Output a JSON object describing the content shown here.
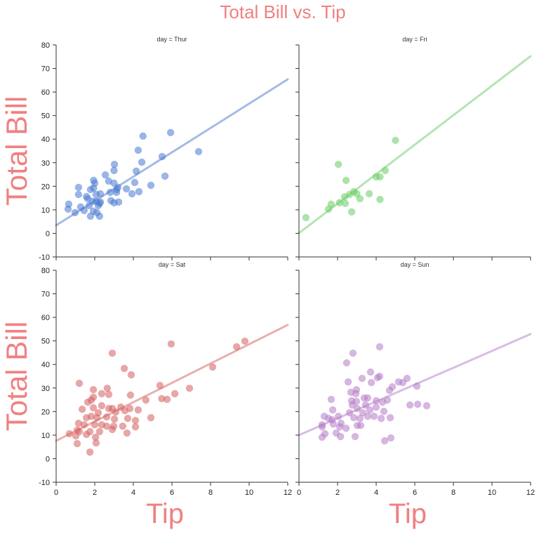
{
  "chart_data": {
    "type": "scatter",
    "title": "Total Bill vs. Tip",
    "title_color": "#f08080",
    "xlabel": "Tip",
    "ylabel": "Total Bill",
    "xlim": [
      0,
      12
    ],
    "ylim": [
      -10,
      80
    ],
    "xticks": [
      "0",
      "2",
      "4",
      "6",
      "8",
      "10",
      "12"
    ],
    "yticks": [
      "-10",
      "0",
      "10",
      "20",
      "30",
      "40",
      "50",
      "60",
      "70",
      "80"
    ],
    "grid": false,
    "panels": [
      {
        "title": "day = Thur",
        "color": "#4878cf",
        "fit": [
          [
            0,
            3.4
          ],
          [
            12,
            65.4
          ]
        ],
        "points": [
          [
            4.5,
            41.3
          ],
          [
            5.93,
            42.8
          ],
          [
            7.38,
            34.7
          ],
          [
            4.25,
            35.3
          ],
          [
            5.49,
            32.6
          ],
          [
            4.44,
            30.2
          ],
          [
            3.02,
            29.3
          ],
          [
            3.0,
            26.7
          ],
          [
            4.15,
            26.4
          ],
          [
            5.64,
            24.3
          ],
          [
            2.55,
            24.8
          ],
          [
            1.94,
            22.5
          ],
          [
            2.0,
            21.3
          ],
          [
            2.72,
            22.2
          ],
          [
            3.0,
            21.3
          ],
          [
            4.07,
            21.6
          ],
          [
            1.16,
            19.5
          ],
          [
            1.16,
            16.5
          ],
          [
            1.78,
            18.6
          ],
          [
            1.94,
            19.2
          ],
          [
            3.2,
            19.5
          ],
          [
            3.13,
            18.6
          ],
          [
            3.64,
            18.9
          ],
          [
            4.91,
            20.4
          ],
          [
            2.8,
            17.4
          ],
          [
            3.13,
            17.4
          ],
          [
            2.29,
            16.8
          ],
          [
            2.07,
            16.5
          ],
          [
            3.93,
            16.8
          ],
          [
            4.29,
            17.7
          ],
          [
            1.57,
            15.6
          ],
          [
            1.64,
            14.7
          ],
          [
            1.89,
            13.6
          ],
          [
            2.07,
            13.6
          ],
          [
            2.29,
            13.3
          ],
          [
            2.25,
            12.7
          ],
          [
            2.84,
            13.9
          ],
          [
            3.24,
            13.3
          ],
          [
            3.0,
            13.0
          ],
          [
            0.65,
            12.4
          ],
          [
            0.62,
            10.3
          ],
          [
            1.27,
            11.2
          ],
          [
            1.45,
            9.7
          ],
          [
            0.98,
            8.8
          ],
          [
            1.93,
            9.4
          ],
          [
            2.11,
            8.8
          ],
          [
            1.78,
            7.3
          ],
          [
            2.25,
            7.3
          ],
          [
            1.71,
            11.8
          ],
          [
            2.18,
            11.8
          ]
        ]
      },
      {
        "title": "day = Fri",
        "color": "#6acc65",
        "fit": [
          [
            0,
            0.1
          ],
          [
            12,
            75.2
          ]
        ],
        "points": [
          [
            0.36,
            6.7
          ],
          [
            1.53,
            10.3
          ],
          [
            1.67,
            12.4
          ],
          [
            2.1,
            13.0
          ],
          [
            2.04,
            29.3
          ],
          [
            2.36,
            15.5
          ],
          [
            2.44,
            22.5
          ],
          [
            2.4,
            12.7
          ],
          [
            2.62,
            16.5
          ],
          [
            2.73,
            9.1
          ],
          [
            2.84,
            17.7
          ],
          [
            3.0,
            16.8
          ],
          [
            3.16,
            14.7
          ],
          [
            3.64,
            16.8
          ],
          [
            4.0,
            24.0
          ],
          [
            4.2,
            24.0
          ],
          [
            4.2,
            14.4
          ],
          [
            4.47,
            26.7
          ],
          [
            5.0,
            39.5
          ]
        ]
      },
      {
        "title": "day = Sat",
        "color": "#d65f5f",
        "fit": [
          [
            0,
            7.6
          ],
          [
            12,
            56.8
          ]
        ],
        "points": [
          [
            5.96,
            48.7
          ],
          [
            9.78,
            49.9
          ],
          [
            9.35,
            47.5
          ],
          [
            2.91,
            44.8
          ],
          [
            3.53,
            38.3
          ],
          [
            3.89,
            35.6
          ],
          [
            8.11,
            38.9
          ],
          [
            1.2,
            32.0
          ],
          [
            5.38,
            31.1
          ],
          [
            6.91,
            29.9
          ],
          [
            6.15,
            27.6
          ],
          [
            2.65,
            29.9
          ],
          [
            1.93,
            29.3
          ],
          [
            2.36,
            27.6
          ],
          [
            2.73,
            27.3
          ],
          [
            1.93,
            26.1
          ],
          [
            1.64,
            24.0
          ],
          [
            1.82,
            24.9
          ],
          [
            3.85,
            27.0
          ],
          [
            4.65,
            24.9
          ],
          [
            5.47,
            25.5
          ],
          [
            5.75,
            25.2
          ],
          [
            1.35,
            21.0
          ],
          [
            1.93,
            21.6
          ],
          [
            2.36,
            22.5
          ],
          [
            2.73,
            21.3
          ],
          [
            2.91,
            21.3
          ],
          [
            3.35,
            21.9
          ],
          [
            3.56,
            20.4
          ],
          [
            3.82,
            21.3
          ],
          [
            4.25,
            20.7
          ],
          [
            3.09,
            19.8
          ],
          [
            2.18,
            19.5
          ],
          [
            1.57,
            17.4
          ],
          [
            1.82,
            18.0
          ],
          [
            2.11,
            17.4
          ],
          [
            2.62,
            17.7
          ],
          [
            3.02,
            16.8
          ],
          [
            3.71,
            17.1
          ],
          [
            4.11,
            16.2
          ],
          [
            4.91,
            17.4
          ],
          [
            1.16,
            15.0
          ],
          [
            1.45,
            14.4
          ],
          [
            2.0,
            14.4
          ],
          [
            2.36,
            14.4
          ],
          [
            2.62,
            13.8
          ],
          [
            2.98,
            13.8
          ],
          [
            3.45,
            13.8
          ],
          [
            2.91,
            12.4
          ],
          [
            4.11,
            13.5
          ],
          [
            1.09,
            12.1
          ],
          [
            1.2,
            11.5
          ],
          [
            1.75,
            11.5
          ],
          [
            2.25,
            11.5
          ],
          [
            0.69,
            10.6
          ],
          [
            1.02,
            9.7
          ],
          [
            1.57,
            10.3
          ],
          [
            3.67,
            10.9
          ],
          [
            2.04,
            9.1
          ],
          [
            1.09,
            6.4
          ],
          [
            2.07,
            6.7
          ],
          [
            1.75,
            2.8
          ]
        ]
      },
      {
        "title": "day = Sun",
        "color": "#b47cc7",
        "fit": [
          [
            0,
            10.0
          ],
          [
            12,
            52.9
          ]
        ],
        "points": [
          [
            4.18,
            47.5
          ],
          [
            2.8,
            44.8
          ],
          [
            2.47,
            40.7
          ],
          [
            3.71,
            36.8
          ],
          [
            4.18,
            35.0
          ],
          [
            4.07,
            34.4
          ],
          [
            3.27,
            34.1
          ],
          [
            2.55,
            32.6
          ],
          [
            3.75,
            32.3
          ],
          [
            5.16,
            32.6
          ],
          [
            5.38,
            32.3
          ],
          [
            5.6,
            34.1
          ],
          [
            6.11,
            30.8
          ],
          [
            4.84,
            30.5
          ],
          [
            4.69,
            29.0
          ],
          [
            2.98,
            29.3
          ],
          [
            2.69,
            28.2
          ],
          [
            2.95,
            27.6
          ],
          [
            3.38,
            25.8
          ],
          [
            3.56,
            25.8
          ],
          [
            1.67,
            25.2
          ],
          [
            2.73,
            24.6
          ],
          [
            2.98,
            24.3
          ],
          [
            4.0,
            24.6
          ],
          [
            4.33,
            24.0
          ],
          [
            4.58,
            24.9
          ],
          [
            2.76,
            22.8
          ],
          [
            3.45,
            22.8
          ],
          [
            4.0,
            21.9
          ],
          [
            5.75,
            22.8
          ],
          [
            6.15,
            23.1
          ],
          [
            6.62,
            22.5
          ],
          [
            1.75,
            20.7
          ],
          [
            3.02,
            21.3
          ],
          [
            3.67,
            20.7
          ],
          [
            2.62,
            19.5
          ],
          [
            3.31,
            19.5
          ],
          [
            4.4,
            20.1
          ],
          [
            1.31,
            18.0
          ],
          [
            1.53,
            17.1
          ],
          [
            1.71,
            16.5
          ],
          [
            2.04,
            18.0
          ],
          [
            2.84,
            17.4
          ],
          [
            3.16,
            17.1
          ],
          [
            3.56,
            18.0
          ],
          [
            3.89,
            18.0
          ],
          [
            4.26,
            17.1
          ],
          [
            4.73,
            17.4
          ],
          [
            1.2,
            14.4
          ],
          [
            1.78,
            14.7
          ],
          [
            2.18,
            15.0
          ],
          [
            2.11,
            13.5
          ],
          [
            2.44,
            12.9
          ],
          [
            3.02,
            14.1
          ],
          [
            3.2,
            14.1
          ],
          [
            1.2,
            13.5
          ],
          [
            1.35,
            10.6
          ],
          [
            1.2,
            9.1
          ],
          [
            1.93,
            10.9
          ],
          [
            2.15,
            9.4
          ],
          [
            2.91,
            9.4
          ],
          [
            4.44,
            7.6
          ],
          [
            4.76,
            8.8
          ]
        ]
      }
    ]
  }
}
